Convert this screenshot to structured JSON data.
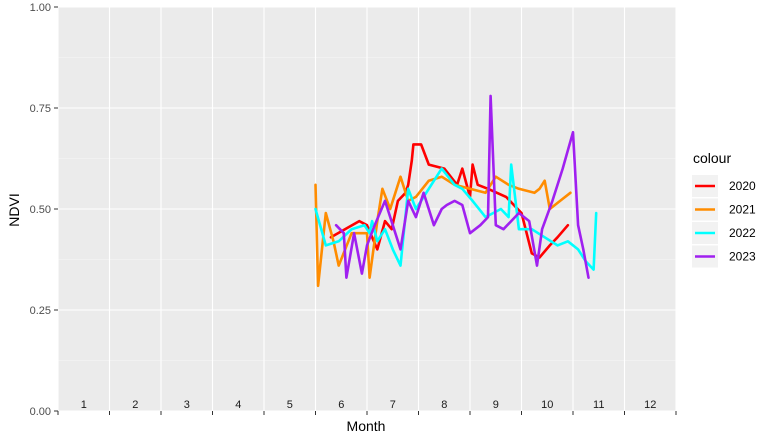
{
  "chart_data": {
    "type": "line",
    "xlabel": "Month",
    "ylabel": "NDVI",
    "xlim": [
      0,
      12
    ],
    "ylim": [
      0,
      1
    ],
    "y_ticks": [
      "0.00",
      "0.25",
      "0.50",
      "0.75",
      "1.00"
    ],
    "y_tick_values": [
      0,
      0.25,
      0.5,
      0.75,
      1
    ],
    "month_labels": [
      "1",
      "2",
      "3",
      "4",
      "5",
      "6",
      "7",
      "8",
      "9",
      "10",
      "11",
      "12"
    ],
    "grid": true,
    "legend": {
      "title": "colour",
      "position": "right"
    },
    "series": [
      {
        "name": "2020",
        "color": "#FF0000",
        "points": [
          [
            5.3,
            0.43
          ],
          [
            5.85,
            0.47
          ],
          [
            6.0,
            0.46
          ],
          [
            6.2,
            0.4
          ],
          [
            6.35,
            0.47
          ],
          [
            6.48,
            0.45
          ],
          [
            6.6,
            0.52
          ],
          [
            6.75,
            0.54
          ],
          [
            6.8,
            0.56
          ],
          [
            6.87,
            0.62
          ],
          [
            6.9,
            0.66
          ],
          [
            7.05,
            0.66
          ],
          [
            7.2,
            0.61
          ],
          [
            7.5,
            0.6
          ],
          [
            7.75,
            0.56
          ],
          [
            7.85,
            0.6
          ],
          [
            8.0,
            0.53
          ],
          [
            8.05,
            0.61
          ],
          [
            8.15,
            0.56
          ],
          [
            8.35,
            0.55
          ],
          [
            8.7,
            0.53
          ],
          [
            9.0,
            0.49
          ],
          [
            9.2,
            0.39
          ],
          [
            9.35,
            0.38
          ],
          [
            9.55,
            0.41
          ],
          [
            9.7,
            0.43
          ],
          [
            9.9,
            0.46
          ]
        ]
      },
      {
        "name": "2021",
        "color": "#FF8C00",
        "points": [
          [
            5.0,
            0.56
          ],
          [
            5.05,
            0.31
          ],
          [
            5.2,
            0.49
          ],
          [
            5.35,
            0.42
          ],
          [
            5.45,
            0.36
          ],
          [
            5.7,
            0.44
          ],
          [
            6.0,
            0.44
          ],
          [
            6.05,
            0.33
          ],
          [
            6.2,
            0.47
          ],
          [
            6.3,
            0.55
          ],
          [
            6.45,
            0.5
          ],
          [
            6.65,
            0.58
          ],
          [
            6.8,
            0.52
          ],
          [
            6.95,
            0.53
          ],
          [
            7.2,
            0.57
          ],
          [
            7.45,
            0.58
          ],
          [
            7.7,
            0.56
          ],
          [
            8.0,
            0.55
          ],
          [
            8.3,
            0.54
          ],
          [
            8.5,
            0.58
          ],
          [
            8.75,
            0.56
          ],
          [
            8.95,
            0.55
          ],
          [
            9.25,
            0.54
          ],
          [
            9.35,
            0.55
          ],
          [
            9.45,
            0.57
          ],
          [
            9.55,
            0.5
          ],
          [
            9.75,
            0.52
          ],
          [
            9.95,
            0.54
          ]
        ]
      },
      {
        "name": "2022",
        "color": "#00FFFF",
        "points": [
          [
            5.0,
            0.5
          ],
          [
            5.2,
            0.41
          ],
          [
            5.45,
            0.42
          ],
          [
            5.7,
            0.45
          ],
          [
            5.95,
            0.46
          ],
          [
            6.05,
            0.44
          ],
          [
            6.1,
            0.47
          ],
          [
            6.2,
            0.42
          ],
          [
            6.35,
            0.45
          ],
          [
            6.5,
            0.4
          ],
          [
            6.65,
            0.36
          ],
          [
            6.8,
            0.55
          ],
          [
            6.95,
            0.5
          ],
          [
            7.2,
            0.55
          ],
          [
            7.45,
            0.6
          ],
          [
            7.7,
            0.56
          ],
          [
            7.85,
            0.55
          ],
          [
            8.05,
            0.52
          ],
          [
            8.3,
            0.48
          ],
          [
            8.6,
            0.5
          ],
          [
            8.75,
            0.48
          ],
          [
            8.8,
            0.61
          ],
          [
            8.95,
            0.45
          ],
          [
            9.2,
            0.45
          ],
          [
            9.45,
            0.43
          ],
          [
            9.7,
            0.41
          ],
          [
            9.9,
            0.42
          ],
          [
            10.1,
            0.4
          ],
          [
            10.25,
            0.37
          ],
          [
            10.4,
            0.35
          ],
          [
            10.45,
            0.49
          ]
        ]
      },
      {
        "name": "2023",
        "color": "#A020F0",
        "points": [
          [
            5.4,
            0.46
          ],
          [
            5.55,
            0.44
          ],
          [
            5.6,
            0.33
          ],
          [
            5.75,
            0.44
          ],
          [
            5.9,
            0.34
          ],
          [
            6.0,
            0.41
          ],
          [
            6.15,
            0.46
          ],
          [
            6.35,
            0.52
          ],
          [
            6.5,
            0.46
          ],
          [
            6.65,
            0.4
          ],
          [
            6.8,
            0.52
          ],
          [
            6.95,
            0.48
          ],
          [
            7.1,
            0.54
          ],
          [
            7.3,
            0.46
          ],
          [
            7.45,
            0.5
          ],
          [
            7.55,
            0.51
          ],
          [
            7.7,
            0.52
          ],
          [
            7.85,
            0.51
          ],
          [
            8.0,
            0.44
          ],
          [
            8.2,
            0.46
          ],
          [
            8.35,
            0.48
          ],
          [
            8.4,
            0.78
          ],
          [
            8.5,
            0.46
          ],
          [
            8.65,
            0.45
          ],
          [
            8.8,
            0.47
          ],
          [
            8.95,
            0.49
          ],
          [
            9.15,
            0.47
          ],
          [
            9.3,
            0.36
          ],
          [
            9.4,
            0.45
          ],
          [
            9.6,
            0.52
          ],
          [
            9.8,
            0.6
          ],
          [
            10.0,
            0.69
          ],
          [
            10.1,
            0.46
          ],
          [
            10.2,
            0.4
          ],
          [
            10.3,
            0.33
          ]
        ]
      }
    ]
  }
}
